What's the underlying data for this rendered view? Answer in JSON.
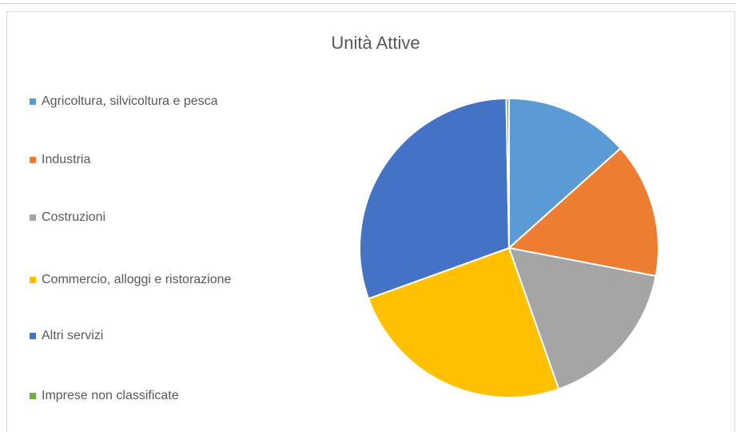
{
  "chart_data": {
    "type": "pie",
    "title": "Unità Attive",
    "categories": [
      "Agricoltura, silvicoltura e pesca",
      "Industria",
      "Costruzioni",
      "Commercio, alloggi e ristorazione",
      "Altri servizi",
      "Imprese non classificate"
    ],
    "values": [
      13.4,
      14.6,
      16.6,
      24.9,
      30.2,
      0.3
    ],
    "colors": [
      "#5b9bd5",
      "#ed7d31",
      "#a5a5a5",
      "#ffc000",
      "#4472c4",
      "#70ad47"
    ],
    "legend": "left"
  }
}
